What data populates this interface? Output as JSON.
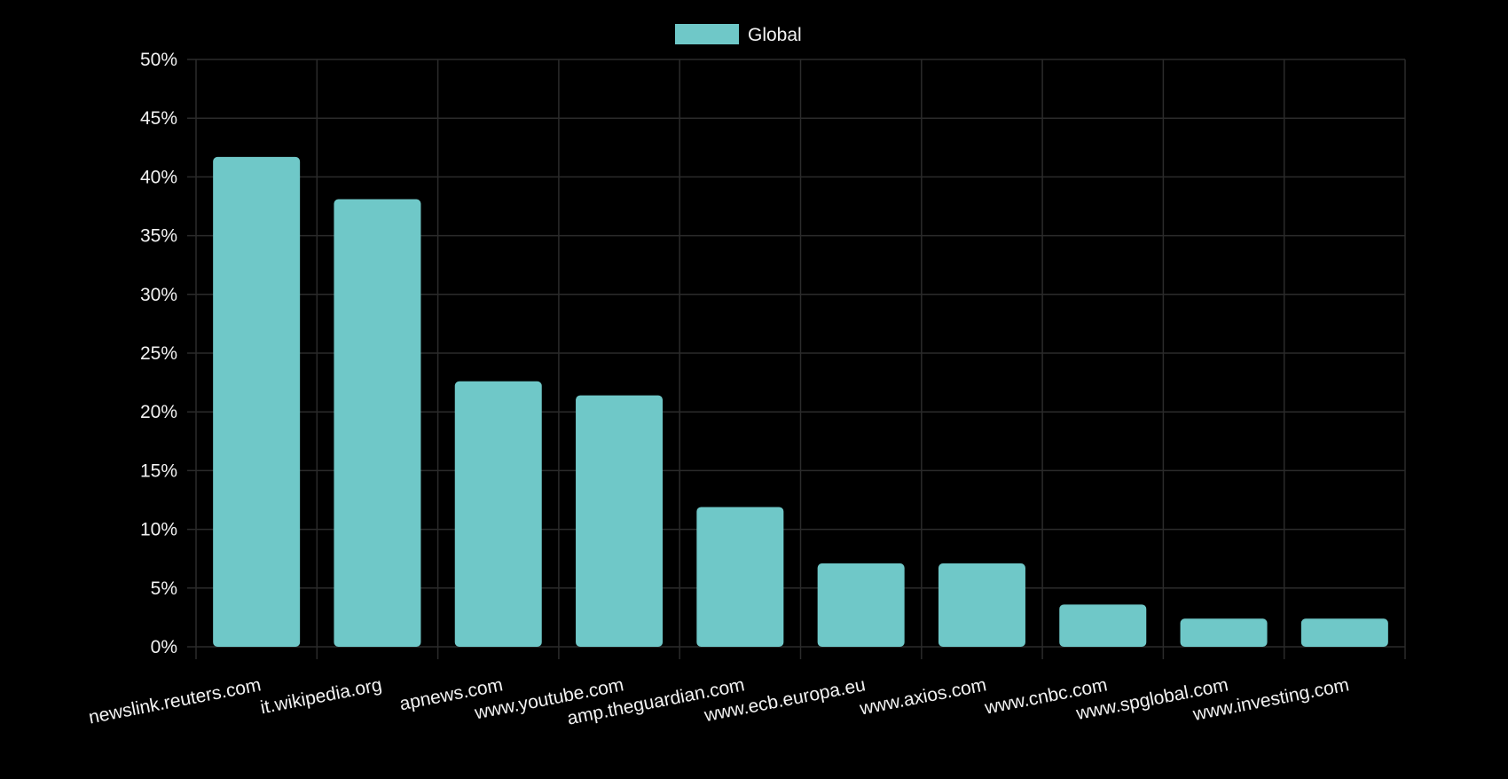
{
  "chart_data": {
    "type": "bar",
    "categories": [
      "newslink.reuters.com",
      "it.wikipedia.org",
      "apnews.com",
      "www.youtube.com",
      "amp.theguardian.com",
      "www.ecb.europa.eu",
      "www.axios.com",
      "www.cnbc.com",
      "www.spglobal.com",
      "www.investing.com"
    ],
    "series": [
      {
        "name": "Global",
        "values": [
          41.7,
          38.1,
          22.6,
          21.4,
          11.9,
          7.1,
          7.1,
          3.6,
          2.4,
          2.4
        ]
      }
    ],
    "ylim": [
      0,
      50
    ],
    "yticks": [
      0,
      5,
      10,
      15,
      20,
      25,
      30,
      35,
      40,
      45,
      50
    ],
    "ytick_labels": [
      "0%",
      "5%",
      "10%",
      "15%",
      "20%",
      "25%",
      "30%",
      "35%",
      "40%",
      "45%",
      "50%"
    ],
    "legend_position": "top-center",
    "grid": true,
    "title": "",
    "xlabel": "",
    "ylabel": "",
    "colors": {
      "background": "#000000",
      "bar": "#6fc8c8",
      "grid": "#2b2b2b",
      "text": "#f2f2f2"
    }
  }
}
